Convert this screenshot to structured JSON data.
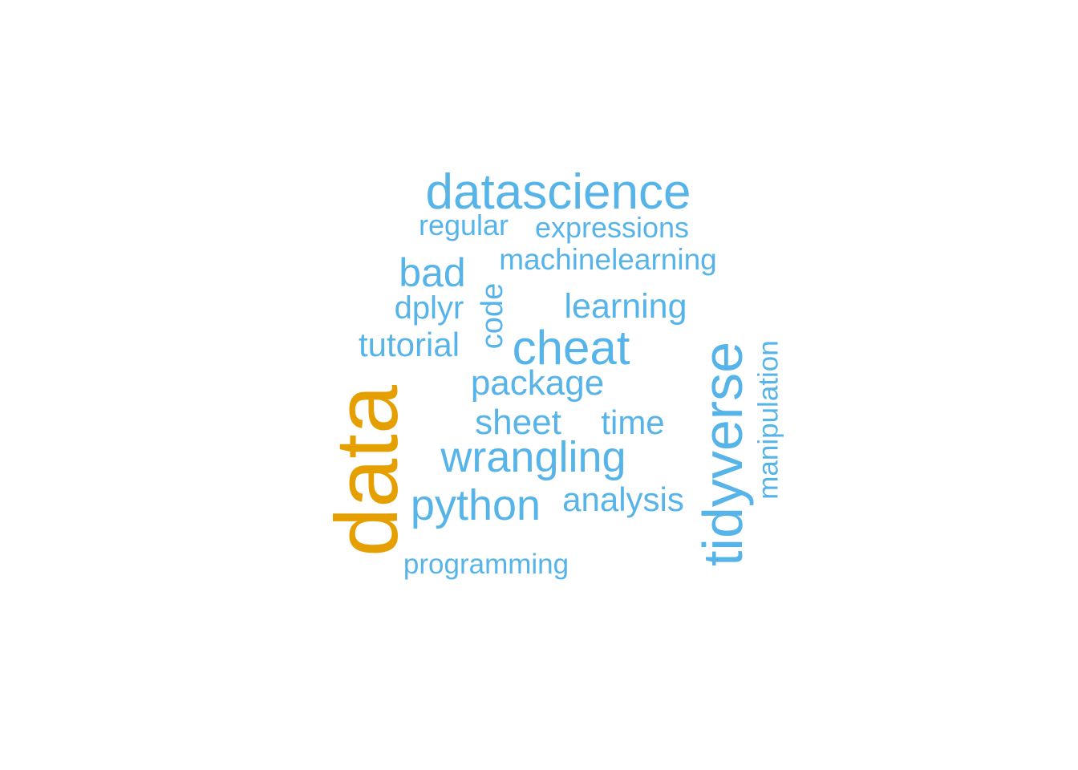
{
  "colors": {
    "primary": "#56B4E9",
    "highlight": "#E69F00",
    "background": "#FFFFFF"
  },
  "words": [
    {
      "text": "data",
      "color": "highlight",
      "orientation": "vertical"
    },
    {
      "text": "datascience",
      "color": "primary",
      "orientation": "horizontal"
    },
    {
      "text": "regular",
      "color": "primary",
      "orientation": "horizontal"
    },
    {
      "text": "expressions",
      "color": "primary",
      "orientation": "horizontal"
    },
    {
      "text": "bad",
      "color": "primary",
      "orientation": "horizontal"
    },
    {
      "text": "machinelearning",
      "color": "primary",
      "orientation": "horizontal"
    },
    {
      "text": "dplyr",
      "color": "primary",
      "orientation": "horizontal"
    },
    {
      "text": "code",
      "color": "primary",
      "orientation": "vertical"
    },
    {
      "text": "learning",
      "color": "primary",
      "orientation": "horizontal"
    },
    {
      "text": "tutorial",
      "color": "primary",
      "orientation": "horizontal"
    },
    {
      "text": "cheat",
      "color": "primary",
      "orientation": "horizontal"
    },
    {
      "text": "package",
      "color": "primary",
      "orientation": "horizontal"
    },
    {
      "text": "tidyverse",
      "color": "primary",
      "orientation": "vertical"
    },
    {
      "text": "manipulation",
      "color": "primary",
      "orientation": "vertical"
    },
    {
      "text": "sheet",
      "color": "primary",
      "orientation": "horizontal"
    },
    {
      "text": "time",
      "color": "primary",
      "orientation": "horizontal"
    },
    {
      "text": "wrangling",
      "color": "primary",
      "orientation": "horizontal"
    },
    {
      "text": "python",
      "color": "primary",
      "orientation": "horizontal"
    },
    {
      "text": "analysis",
      "color": "primary",
      "orientation": "horizontal"
    },
    {
      "text": "programming",
      "color": "primary",
      "orientation": "horizontal"
    }
  ]
}
